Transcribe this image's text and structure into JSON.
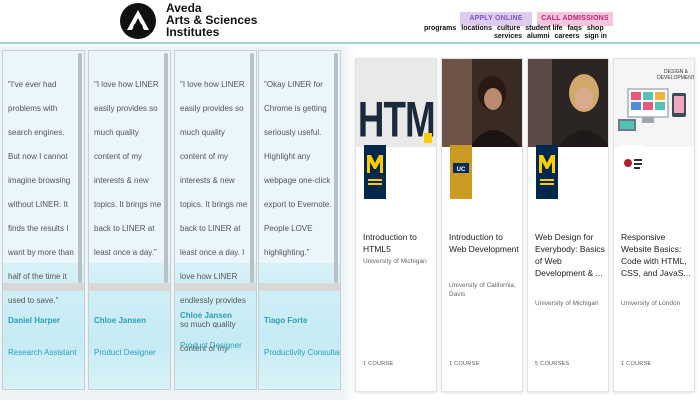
{
  "header": {
    "brand_line1": "Aveda",
    "brand_line2": "Arts & Sciences",
    "brand_line3": "Institutes",
    "apply_label": "APPLY ONLINE",
    "call_label": "CALL ADMISSIONS",
    "nav_row1": [
      "programs",
      "locations",
      "culture",
      "student life",
      "faqs",
      "shop"
    ],
    "nav_row2": [
      "services",
      "alumni",
      "careers",
      "sign in"
    ],
    "logo_icon": "aveda-a-icon",
    "colors": {
      "apply_bg": "#ddccf2",
      "call_bg": "#f6c6de",
      "accent_line": "#9ed7cf"
    }
  },
  "testimonials": [
    {
      "quote": "\"I've ever had problems with search engines. But now I cannot imagine browsing without LINER. It finds the results I want by more than half of the time it used to save.\"",
      "name": "Daniel Harper",
      "role": "Research Assistant"
    },
    {
      "quote": "\"I love how LINER easily provides so much quality content of my interests & new topics. It brings me back to LINER at least once a day.\"",
      "name": "Chloe Jansen",
      "role": "Product Designer"
    },
    {
      "quote": "\"I love how LINER easily provides so much quality content of my interests & new topics. It brings me back to LINER at least once a day. I love how LINER endlessly provides so much quality content of my",
      "name": "Chloe Jansen",
      "role": "Product Designer"
    },
    {
      "quote": "\"Okay LINER for Chrome is getting seriously useful. Highlight any webpage one-click export to Evernote. People LOVE highlighting.\"",
      "name": "Tiago Forte",
      "role": "Productivity Consultant"
    }
  ],
  "courses": [
    {
      "title": "Introduction to HTML5",
      "org": "University of Michigan",
      "count": "1 COURSE",
      "thumb": "html",
      "badge": "michigan"
    },
    {
      "title": "Introduction to Web Development",
      "org": "University of California, Davis",
      "count": "1 COURSE",
      "thumb": "person-dark",
      "badge": "ucdavis"
    },
    {
      "title": "Web Design for Everybody: Basics of Web Development & ...",
      "org": "University of Michigan",
      "count": "5 COURSES",
      "thumb": "person-blonde",
      "badge": "michigan"
    },
    {
      "title": "Responsive Website Basics: Code with HTML, CSS, and JavaS...",
      "org": "University of London",
      "count": "1 COURSE",
      "thumb": "design-dev",
      "badge": "london",
      "thumb_text": "DESIGN & DEVELOPMENT"
    }
  ]
}
